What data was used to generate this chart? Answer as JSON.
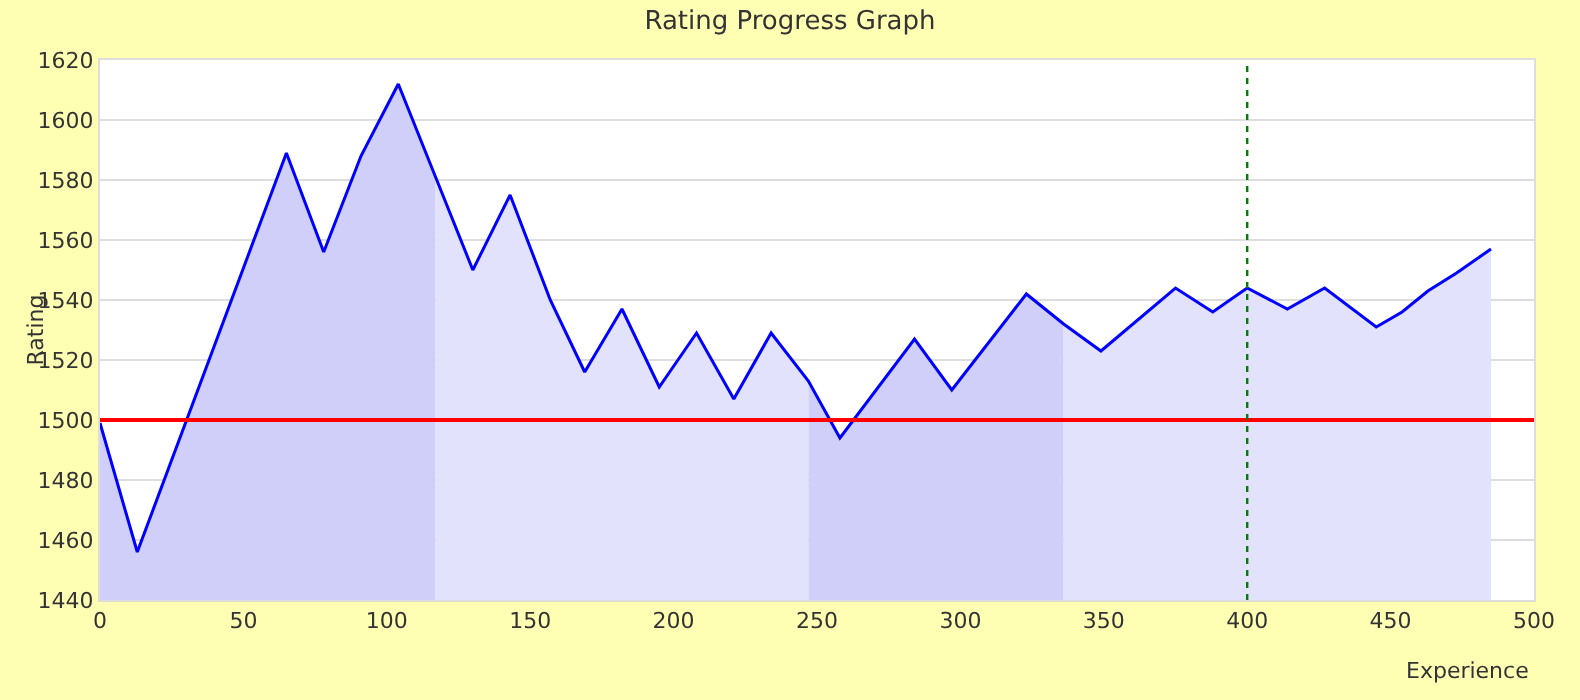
{
  "chart_data": {
    "type": "line",
    "title": "Rating Progress Graph",
    "xlabel": "Experience",
    "ylabel": "Rating",
    "series": [
      {
        "type": "area",
        "color": "#cfcffa",
        "x": [
          0,
          13,
          65,
          78,
          91,
          104,
          117
        ],
        "values": [
          1499,
          1456,
          1589,
          1556,
          1588,
          1612,
          1581
        ]
      },
      {
        "type": "area",
        "color": "#e2e2fc",
        "x": [
          117,
          130,
          143,
          157,
          169,
          182,
          195,
          208,
          221,
          234,
          247
        ],
        "values": [
          1581,
          1550,
          1575,
          1540,
          1516,
          1537,
          1511,
          1529,
          1507,
          1529,
          1513
        ]
      },
      {
        "type": "area",
        "color": "#cfcffa",
        "x": [
          247,
          258,
          284,
          297,
          323,
          336
        ],
        "values": [
          1513,
          1494,
          1527,
          1510,
          1542,
          1532
        ]
      },
      {
        "type": "area",
        "color": "#e2e2fc",
        "x": [
          336,
          349,
          375,
          388,
          400,
          414,
          427,
          445,
          454,
          463,
          473,
          485
        ],
        "values": [
          1532,
          1523,
          1544,
          1536,
          1544,
          1537,
          1544,
          1531,
          1536,
          1543,
          1549,
          1557
        ]
      },
      {
        "color": "#0000ff",
        "x": [
          0,
          13,
          65,
          78,
          91,
          104,
          117,
          130,
          143,
          157,
          169,
          182,
          195,
          208,
          221,
          234,
          247,
          258,
          284,
          297,
          323,
          336,
          349,
          375,
          388,
          400,
          414,
          427,
          445,
          454,
          463,
          473,
          485
        ],
        "values": [
          1499,
          1456,
          1589,
          1556,
          1588,
          1612,
          1581,
          1550,
          1575,
          1540,
          1516,
          1537,
          1511,
          1529,
          1507,
          1529,
          1513,
          1494,
          1527,
          1510,
          1542,
          1532,
          1523,
          1544,
          1536,
          1544,
          1537,
          1544,
          1531,
          1536,
          1543,
          1549,
          1557
        ]
      }
    ],
    "xlim": [
      0,
      500
    ],
    "xticks": [
      0,
      50,
      100,
      150,
      200,
      250,
      300,
      350,
      400,
      450,
      500
    ],
    "ylim": [
      1440,
      1620
    ],
    "yticks": [
      1440,
      1460,
      1480,
      1500,
      1520,
      1540,
      1560,
      1580,
      1600,
      1620
    ],
    "grid": "y",
    "marker": "none",
    "line_style": "solid",
    "ref_lines": [
      {
        "axis": "y",
        "value": 1500,
        "color": "#ff0000",
        "line_style": "solid"
      },
      {
        "axis": "x",
        "value": 400,
        "color": "#008000",
        "line_style": "dotted"
      }
    ]
  }
}
